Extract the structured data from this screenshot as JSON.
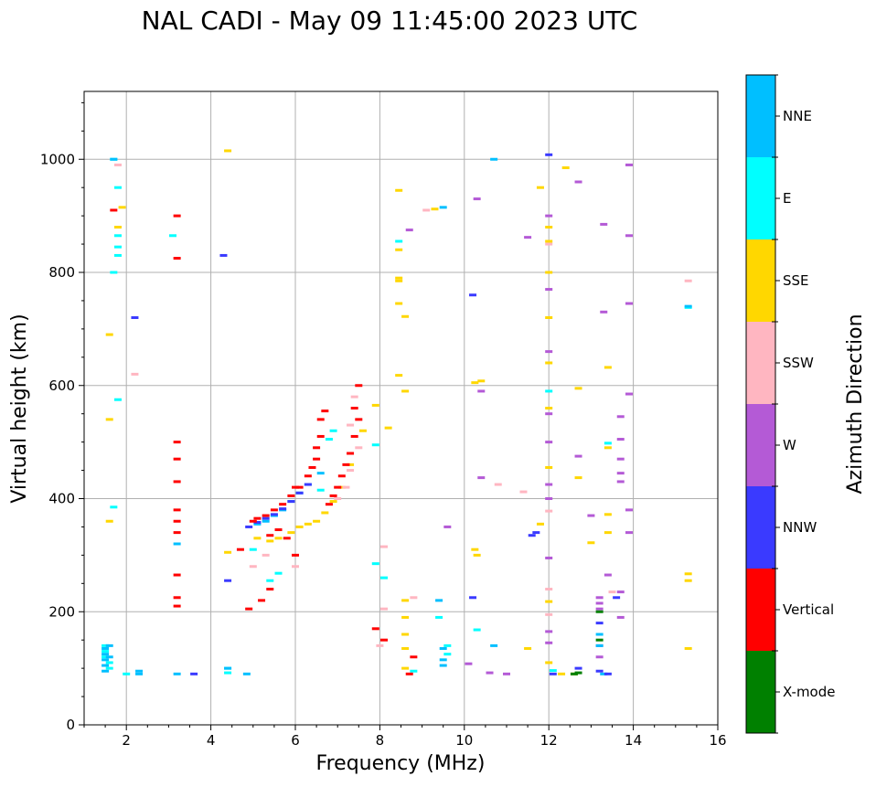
{
  "chart_data": {
    "type": "scatter",
    "title": "NAL CADI - May 09 11:45:00 2023 UTC",
    "xlabel": "Frequency (MHz)",
    "ylabel": "Virtual height (km)",
    "xlim": [
      1,
      16
    ],
    "ylim": [
      0,
      1120
    ],
    "x_ticks": [
      2,
      4,
      6,
      8,
      10,
      12,
      14,
      16
    ],
    "y_ticks": [
      0,
      200,
      400,
      600,
      800,
      1000
    ],
    "x_tick_labels": [
      "2",
      "4",
      "6",
      "8",
      "10",
      "12",
      "14",
      "16"
    ],
    "y_tick_labels": [
      "0",
      "200",
      "400",
      "600",
      "800",
      "1000"
    ],
    "grid": true,
    "legend": {
      "title": "Azimuth Direction",
      "placement": "right colorbar",
      "categories": [
        {
          "name": "X-mode",
          "color": "#008000"
        },
        {
          "name": "Vertical",
          "color": "#ff0000"
        },
        {
          "name": "NNW",
          "color": "#3a3aff"
        },
        {
          "name": "W",
          "color": "#b45ad6"
        },
        {
          "name": "SSW",
          "color": "#ffb6c1"
        },
        {
          "name": "SSE",
          "color": "#ffd700"
        },
        {
          "name": "E",
          "color": "#00ffff"
        },
        {
          "name": "NNE",
          "color": "#00bfff"
        }
      ]
    },
    "series": [
      {
        "name": "X-mode",
        "points": [
          [
            12.6,
            90
          ],
          [
            12.7,
            92
          ],
          [
            13.2,
            150
          ],
          [
            13.2,
            200
          ]
        ]
      },
      {
        "name": "Vertical",
        "points": [
          [
            1.7,
            910
          ],
          [
            3.2,
            900
          ],
          [
            3.2,
            825
          ],
          [
            3.2,
            500
          ],
          [
            3.2,
            470
          ],
          [
            3.2,
            430
          ],
          [
            3.2,
            380
          ],
          [
            3.2,
            360
          ],
          [
            3.2,
            340
          ],
          [
            3.2,
            265
          ],
          [
            3.2,
            225
          ],
          [
            3.2,
            210
          ],
          [
            4.7,
            310
          ],
          [
            4.9,
            205
          ],
          [
            5.2,
            220
          ],
          [
            5.4,
            240
          ],
          [
            5.0,
            360
          ],
          [
            5.1,
            365
          ],
          [
            5.3,
            370
          ],
          [
            5.5,
            380
          ],
          [
            5.7,
            390
          ],
          [
            5.9,
            405
          ],
          [
            6.1,
            420
          ],
          [
            5.4,
            335
          ],
          [
            5.6,
            345
          ],
          [
            5.8,
            330
          ],
          [
            6.0,
            300
          ],
          [
            6.0,
            420
          ],
          [
            6.3,
            440
          ],
          [
            6.4,
            455
          ],
          [
            6.5,
            470
          ],
          [
            6.5,
            490
          ],
          [
            6.6,
            510
          ],
          [
            6.6,
            540
          ],
          [
            6.7,
            555
          ],
          [
            6.8,
            390
          ],
          [
            6.9,
            405
          ],
          [
            7.0,
            420
          ],
          [
            7.1,
            440
          ],
          [
            7.2,
            460
          ],
          [
            7.3,
            480
          ],
          [
            7.4,
            510
          ],
          [
            7.5,
            540
          ],
          [
            7.4,
            560
          ],
          [
            7.5,
            600
          ],
          [
            7.9,
            170
          ],
          [
            8.1,
            150
          ],
          [
            8.7,
            90
          ],
          [
            8.8,
            120
          ]
        ]
      },
      {
        "name": "NNW",
        "points": [
          [
            2.2,
            720
          ],
          [
            4.3,
            830
          ],
          [
            3.6,
            90
          ],
          [
            4.4,
            255
          ],
          [
            4.9,
            350
          ],
          [
            5.1,
            358
          ],
          [
            5.3,
            365
          ],
          [
            5.5,
            372
          ],
          [
            5.7,
            382
          ],
          [
            5.9,
            395
          ],
          [
            6.1,
            410
          ],
          [
            6.3,
            425
          ],
          [
            10.2,
            760
          ],
          [
            10.2,
            225
          ],
          [
            11.6,
            335
          ],
          [
            11.7,
            340
          ],
          [
            12.1,
            90
          ],
          [
            13.2,
            95
          ],
          [
            13.2,
            180
          ],
          [
            13.4,
            90
          ],
          [
            13.6,
            225
          ],
          [
            12.0,
            1008
          ],
          [
            12.7,
            100
          ]
        ]
      },
      {
        "name": "W",
        "points": [
          [
            8.7,
            875
          ],
          [
            10.3,
            930
          ],
          [
            10.4,
            590
          ],
          [
            10.4,
            437
          ],
          [
            9.6,
            350
          ],
          [
            11.5,
            862
          ],
          [
            12.0,
            900
          ],
          [
            12.0,
            770
          ],
          [
            12.0,
            660
          ],
          [
            12.0,
            550
          ],
          [
            12.0,
            500
          ],
          [
            12.0,
            425
          ],
          [
            12.0,
            400
          ],
          [
            12.0,
            295
          ],
          [
            12.0,
            165
          ],
          [
            12.0,
            145
          ],
          [
            12.7,
            960
          ],
          [
            12.7,
            475
          ],
          [
            13.0,
            370
          ],
          [
            13.3,
            885
          ],
          [
            13.3,
            730
          ],
          [
            13.4,
            265
          ],
          [
            13.7,
            545
          ],
          [
            13.7,
            505
          ],
          [
            13.7,
            470
          ],
          [
            13.7,
            445
          ],
          [
            13.7,
            430
          ],
          [
            13.7,
            235
          ],
          [
            13.7,
            190
          ],
          [
            13.9,
            990
          ],
          [
            13.9,
            865
          ],
          [
            13.9,
            745
          ],
          [
            13.9,
            585
          ],
          [
            13.9,
            380
          ],
          [
            13.9,
            340
          ],
          [
            13.2,
            120
          ],
          [
            13.2,
            140
          ],
          [
            13.2,
            205
          ],
          [
            13.2,
            215
          ],
          [
            13.2,
            225
          ],
          [
            10.6,
            92
          ],
          [
            11.0,
            90
          ],
          [
            10.1,
            108
          ]
        ]
      },
      {
        "name": "SSW",
        "points": [
          [
            1.8,
            990
          ],
          [
            2.2,
            620
          ],
          [
            7.0,
            400
          ],
          [
            7.2,
            420
          ],
          [
            7.3,
            450
          ],
          [
            7.5,
            490
          ],
          [
            7.3,
            530
          ],
          [
            7.4,
            580
          ],
          [
            5.0,
            280
          ],
          [
            5.3,
            300
          ],
          [
            6.0,
            280
          ],
          [
            8.1,
            315
          ],
          [
            8.1,
            205
          ],
          [
            8.0,
            140
          ],
          [
            8.8,
            225
          ],
          [
            9.1,
            910
          ],
          [
            10.8,
            425
          ],
          [
            11.4,
            412
          ],
          [
            15.3,
            785
          ],
          [
            12.0,
            240
          ],
          [
            12.0,
            378
          ],
          [
            12.0,
            850
          ],
          [
            12.0,
            195
          ],
          [
            13.5,
            235
          ]
        ]
      },
      {
        "name": "SSE",
        "points": [
          [
            1.6,
            690
          ],
          [
            1.6,
            540
          ],
          [
            1.6,
            360
          ],
          [
            1.8,
            880
          ],
          [
            1.9,
            915
          ],
          [
            4.4,
            1015
          ],
          [
            4.4,
            305
          ],
          [
            5.1,
            330
          ],
          [
            5.4,
            325
          ],
          [
            5.6,
            330
          ],
          [
            5.9,
            340
          ],
          [
            6.1,
            350
          ],
          [
            6.3,
            355
          ],
          [
            6.5,
            360
          ],
          [
            6.7,
            375
          ],
          [
            6.9,
            395
          ],
          [
            7.1,
            420
          ],
          [
            7.3,
            460
          ],
          [
            7.6,
            520
          ],
          [
            7.9,
            565
          ],
          [
            8.2,
            525
          ],
          [
            8.45,
            945
          ],
          [
            8.45,
            840
          ],
          [
            8.45,
            790
          ],
          [
            8.45,
            785
          ],
          [
            8.45,
            745
          ],
          [
            8.45,
            618
          ],
          [
            8.6,
            722
          ],
          [
            8.6,
            590
          ],
          [
            8.6,
            220
          ],
          [
            8.6,
            190
          ],
          [
            8.6,
            160
          ],
          [
            8.6,
            135
          ],
          [
            8.6,
            100
          ],
          [
            9.3,
            912
          ],
          [
            10.25,
            605
          ],
          [
            10.4,
            608
          ],
          [
            10.25,
            310
          ],
          [
            10.3,
            300
          ],
          [
            11.5,
            135
          ],
          [
            11.8,
            355
          ],
          [
            12.0,
            880
          ],
          [
            12.0,
            855
          ],
          [
            12.0,
            800
          ],
          [
            12.0,
            720
          ],
          [
            12.0,
            640
          ],
          [
            12.0,
            560
          ],
          [
            12.0,
            455
          ],
          [
            12.0,
            218
          ],
          [
            12.0,
            110
          ],
          [
            12.4,
            985
          ],
          [
            12.7,
            595
          ],
          [
            12.7,
            437
          ],
          [
            13.0,
            322
          ],
          [
            13.4,
            632
          ],
          [
            13.4,
            490
          ],
          [
            13.4,
            372
          ],
          [
            13.4,
            340
          ],
          [
            15.3,
            267
          ],
          [
            15.3,
            255
          ],
          [
            15.3,
            135
          ],
          [
            12.3,
            90
          ],
          [
            12.6,
            90
          ],
          [
            11.8,
            950
          ]
        ]
      },
      {
        "name": "E",
        "points": [
          [
            1.7,
            1000
          ],
          [
            1.8,
            950
          ],
          [
            1.8,
            865
          ],
          [
            1.8,
            845
          ],
          [
            1.8,
            830
          ],
          [
            1.7,
            800
          ],
          [
            1.8,
            575
          ],
          [
            1.7,
            385
          ],
          [
            3.1,
            865
          ],
          [
            5.0,
            310
          ],
          [
            5.4,
            255
          ],
          [
            5.6,
            268
          ],
          [
            6.6,
            415
          ],
          [
            6.8,
            505
          ],
          [
            6.9,
            520
          ],
          [
            7.9,
            495
          ],
          [
            7.9,
            285
          ],
          [
            8.1,
            260
          ],
          [
            8.45,
            855
          ],
          [
            9.4,
            190
          ],
          [
            9.6,
            140
          ],
          [
            9.6,
            125
          ],
          [
            10.3,
            168
          ],
          [
            12.0,
            590
          ],
          [
            13.4,
            498
          ],
          [
            1.5,
            140
          ],
          [
            1.5,
            130
          ],
          [
            1.5,
            120
          ],
          [
            1.6,
            110
          ],
          [
            1.6,
            100
          ],
          [
            2.0,
            90
          ],
          [
            4.4,
            100
          ],
          [
            4.4,
            92
          ],
          [
            8.8,
            95
          ],
          [
            12.1,
            96
          ],
          [
            15.3,
            738
          ]
        ]
      },
      {
        "name": "NNE",
        "points": [
          [
            1.7,
            1000
          ],
          [
            2.3,
            95
          ],
          [
            2.3,
            90
          ],
          [
            3.2,
            320
          ],
          [
            3.2,
            90
          ],
          [
            4.4,
            100
          ],
          [
            4.85,
            90
          ],
          [
            5.1,
            355
          ],
          [
            5.3,
            360
          ],
          [
            5.5,
            370
          ],
          [
            5.7,
            380
          ],
          [
            5.9,
            395
          ],
          [
            6.1,
            410
          ],
          [
            6.3,
            425
          ],
          [
            6.6,
            445
          ],
          [
            9.4,
            220
          ],
          [
            9.5,
            915
          ],
          [
            9.5,
            135
          ],
          [
            9.5,
            115
          ],
          [
            9.5,
            105
          ],
          [
            10.7,
            1000
          ],
          [
            10.7,
            140
          ],
          [
            13.2,
            140
          ],
          [
            13.2,
            160
          ],
          [
            13.3,
            90
          ],
          [
            15.3,
            740
          ],
          [
            1.5,
            135
          ],
          [
            1.5,
            125
          ],
          [
            1.5,
            115
          ],
          [
            1.5,
            105
          ],
          [
            1.5,
            95
          ],
          [
            1.6,
            140
          ],
          [
            1.6,
            120
          ]
        ]
      }
    ]
  }
}
